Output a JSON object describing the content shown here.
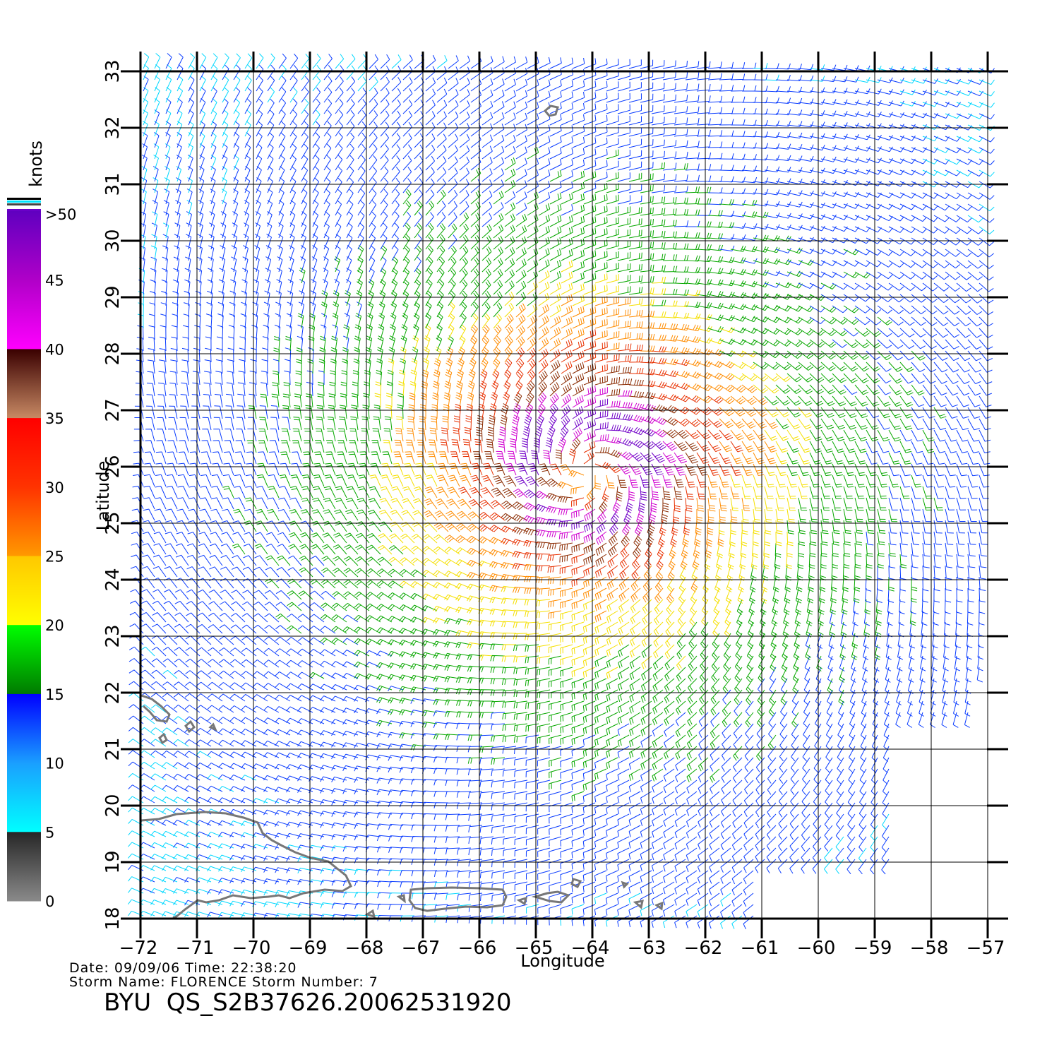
{
  "map": {
    "storm_name": "FLORENCE",
    "storm_number": "7",
    "date": "09/09/06",
    "time": "22:38:20",
    "product_id": "BYU  QS_S2B37626.20062531920",
    "meta_line1": "Date: 09/09/06   Time: 22:38:20",
    "meta_line2": "Storm  Name: FLORENCE   Storm  Number: 7",
    "extent": {
      "lon": [
        -72,
        -56.6
      ],
      "lat": [
        17.9,
        33.2
      ]
    },
    "longitude_ticks": [
      -72,
      -71,
      -70,
      -69,
      -68,
      -67,
      -66,
      -65,
      -64,
      -63,
      -62,
      -61,
      -60,
      -59,
      -58,
      -57
    ],
    "latitude_ticks": [
      18,
      19,
      20,
      21,
      22,
      23,
      24,
      25,
      26,
      27,
      28,
      29,
      30,
      31,
      32,
      33
    ],
    "xlabel": "Longitude",
    "ylabel": "Latitude",
    "storm_center": {
      "lon": -64.1,
      "lat": 25.9
    },
    "layers": [
      "wind-barbs",
      "coastlines",
      "lat-lon-grid"
    ]
  },
  "colorbar": {
    "title": "knots",
    "tick_labels": [
      "0",
      "5",
      "10",
      "15",
      "20",
      "25",
      "30",
      "35",
      "40",
      "45",
      ">50"
    ],
    "bins": [
      {
        "from": 0,
        "to": 5,
        "colors": [
          "#8a8a8a",
          "#262626"
        ]
      },
      {
        "from": 5,
        "to": 10,
        "colors": [
          "#00ffff",
          "#1a9fff"
        ]
      },
      {
        "from": 10,
        "to": 15,
        "colors": [
          "#1a9fff",
          "#0000ff"
        ]
      },
      {
        "from": 15,
        "to": 20,
        "colors": [
          "#007a00",
          "#00ff00"
        ]
      },
      {
        "from": 20,
        "to": 25,
        "colors": [
          "#ffff00",
          "#ffc800"
        ]
      },
      {
        "from": 25,
        "to": 30,
        "colors": [
          "#ff9900",
          "#ff3300"
        ]
      },
      {
        "from": 30,
        "to": 35,
        "colors": [
          "#ff3300",
          "#ff0000"
        ]
      },
      {
        "from": 35,
        "to": 40,
        "colors": [
          "#c88a64",
          "#3a0000"
        ]
      },
      {
        "from": 40,
        "to": 45,
        "colors": [
          "#ff00ff",
          "#b000c8"
        ]
      },
      {
        "from": 45,
        "to": 50,
        "colors": [
          "#b000c8",
          "#6000c0"
        ]
      }
    ]
  }
}
